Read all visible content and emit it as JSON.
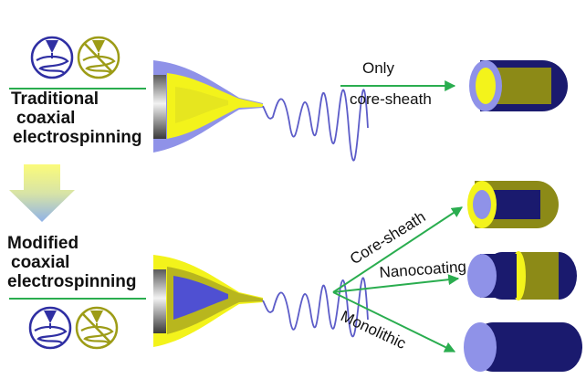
{
  "colors": {
    "dark_blue": "#1a1a6e",
    "light_blue": "#8f92e8",
    "mid_blue": "#4f50d2",
    "yellow": "#f3f31b",
    "olive": "#8c8a17",
    "green": "#2aad4f",
    "jet_blue": "#5c5cc8",
    "icon_blue": "#2f2fa3",
    "icon_olive": "#9d9c17"
  },
  "traditional": {
    "line1": "Traditional",
    "line2": "coaxial",
    "line3": "electrospinning",
    "result_line1": "Only",
    "result_line2": "core-sheath"
  },
  "modified": {
    "line1": "Modified",
    "line2": "coaxial",
    "line3": "electrospinning",
    "outcomes": [
      "Core-sheath",
      "Nanocoating",
      "Monolithic"
    ]
  },
  "icons": {
    "top_left": "spinneret-blue-icon",
    "top_right": "spinneret-prohibited-yellow-icon",
    "bottom_left": "spinneret-blue-icon",
    "bottom_right": "spinneret-prohibited-yellow-icon"
  }
}
